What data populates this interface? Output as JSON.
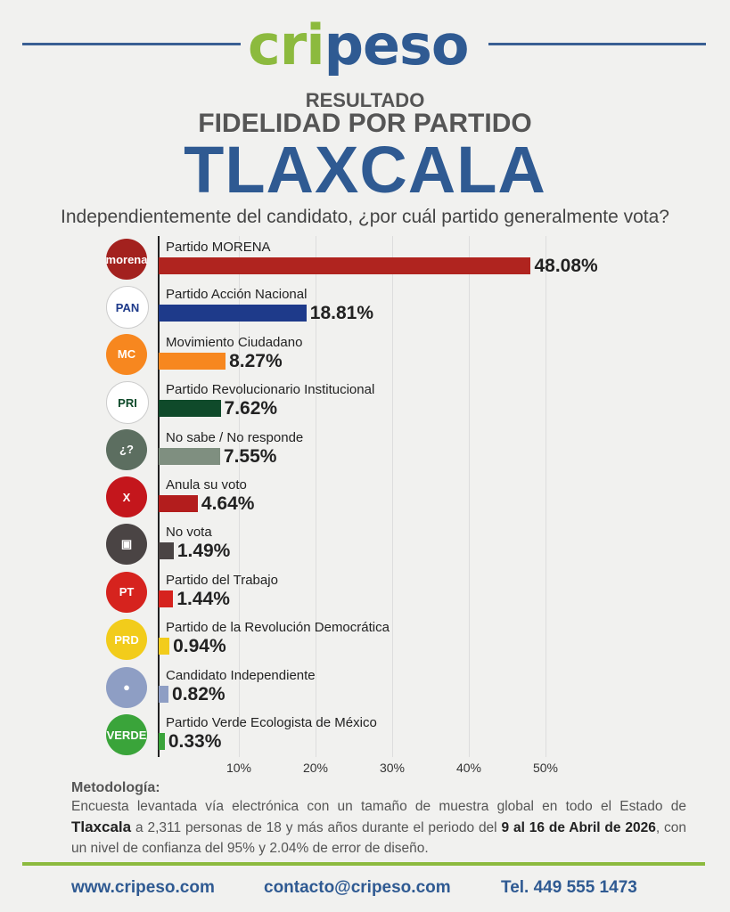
{
  "header": {
    "logo_part1": "cri",
    "logo_part2": "peso",
    "subtitle": "RESULTADO",
    "title": "FIDELIDAD POR PARTIDO",
    "state": "TLAXCALA",
    "question": "Independientemente del candidato, ¿por cuál partido generalmente vota?"
  },
  "chart_data": {
    "type": "bar",
    "orientation": "horizontal",
    "categories": [
      "Partido MORENA",
      "Partido Acción Nacional",
      "Movimiento Ciudadano",
      "Partido Revolucionario Institucional",
      "No sabe / No responde",
      "Anula su voto",
      "No vota",
      "Partido del Trabajo",
      "Partido de la Revolución Democrática",
      "Candidato Independiente",
      "Partido Verde Ecologista de México"
    ],
    "values": [
      48.08,
      18.81,
      8.27,
      7.62,
      7.55,
      4.64,
      1.49,
      1.44,
      0.94,
      0.82,
      0.33
    ],
    "value_labels": [
      "48.08%",
      "18.81%",
      "8.27%",
      "7.62%",
      "7.55%",
      "4.64%",
      "1.49%",
      "1.44%",
      "0.94%",
      "0.82%",
      "0.33%"
    ],
    "colors": [
      "#b0241f",
      "#1e3a8a",
      "#f7871f",
      "#0f4a2a",
      "#7f8f80",
      "#b31d1d",
      "#4a4444",
      "#d6231e",
      "#f2cc1b",
      "#8e9ec4",
      "#3aa43a"
    ],
    "icons": [
      {
        "name": "morena-logo",
        "text": "morena",
        "bg": "#a3211e"
      },
      {
        "name": "pan-logo",
        "text": "PAN",
        "bg": "#ffffff"
      },
      {
        "name": "mc-logo",
        "text": "MC",
        "bg": "#f7871f"
      },
      {
        "name": "pri-logo",
        "text": "PRI",
        "bg": "#ffffff"
      },
      {
        "name": "question-icon",
        "text": "¿?",
        "bg": "#5c6e60"
      },
      {
        "name": "x-icon",
        "text": "X",
        "bg": "#c4161c"
      },
      {
        "name": "ballot-icon",
        "text": "▣",
        "bg": "#4a4444"
      },
      {
        "name": "pt-logo",
        "text": "PT",
        "bg": "#d6231e"
      },
      {
        "name": "prd-logo",
        "text": "PRD",
        "bg": "#f2cc1b"
      },
      {
        "name": "person-icon",
        "text": "●",
        "bg": "#8e9ec4"
      },
      {
        "name": "verde-logo",
        "text": "VERDE",
        "bg": "#3aa43a"
      }
    ],
    "xticks": [
      "10%",
      "20%",
      "30%",
      "40%",
      "50%"
    ],
    "xlim": [
      0,
      50
    ]
  },
  "methodology": {
    "title": "Metodología:",
    "p1": "Encuesta levantada vía electrónica con un tamaño de muestra global en todo el Estado de",
    "state": "Tlaxcala",
    "p2": " a 2,311 personas de 18 y más años durante el periodo del ",
    "dates": "9 al 16 de Abril de 2026",
    "p3": ", con un nivel de confianza del 95% y 2.04% de error de diseño."
  },
  "footer": {
    "web": "www.cripeso.com",
    "email": "contacto@cripeso.com",
    "phone": "Tel. 449 555 1473"
  }
}
